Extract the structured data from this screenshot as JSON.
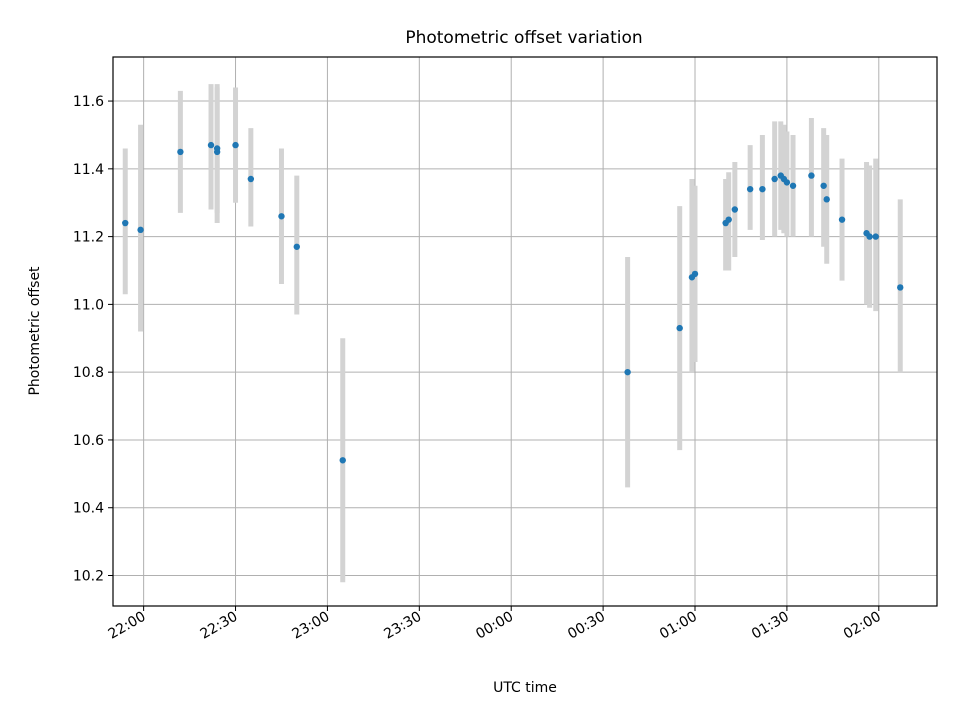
{
  "chart_data": {
    "type": "scatter",
    "title": "Photometric offset variation",
    "xlabel": "UTC time",
    "ylabel": "Photometric offset",
    "x_unit": "UTC time (wraps past midnight: 22:00 → 02:00)",
    "xlim": [
      "21:50",
      "02:19"
    ],
    "ylim": [
      10.11,
      11.73
    ],
    "grid": true,
    "x_ticks": [
      "22:00",
      "22:30",
      "23:00",
      "23:30",
      "00:00",
      "00:30",
      "01:00",
      "01:30",
      "02:00"
    ],
    "y_ticks": [
      "10.2",
      "10.4",
      "10.6",
      "10.8",
      "11.0",
      "11.2",
      "11.4",
      "11.6"
    ],
    "colors": {
      "marker": "#1f77b4",
      "errorbar": "#d3d3d3",
      "grid": "#b0b0b0"
    },
    "points": [
      {
        "x": "21:54",
        "y": 11.24,
        "lo": 11.03,
        "hi": 11.46
      },
      {
        "x": "21:59",
        "y": 11.22,
        "lo": 10.92,
        "hi": 11.53
      },
      {
        "x": "22:12",
        "y": 11.45,
        "lo": 11.27,
        "hi": 11.63
      },
      {
        "x": "22:22",
        "y": 11.47,
        "lo": 11.28,
        "hi": 11.65
      },
      {
        "x": "22:24",
        "y": 11.45,
        "lo": 11.24,
        "hi": 11.65
      },
      {
        "x": "22:24",
        "y": 11.46,
        "lo": 11.27,
        "hi": 11.64
      },
      {
        "x": "22:30",
        "y": 11.47,
        "lo": 11.3,
        "hi": 11.64
      },
      {
        "x": "22:35",
        "y": 11.37,
        "lo": 11.23,
        "hi": 11.52
      },
      {
        "x": "22:45",
        "y": 11.26,
        "lo": 11.06,
        "hi": 11.46
      },
      {
        "x": "22:50",
        "y": 11.17,
        "lo": 10.97,
        "hi": 11.38
      },
      {
        "x": "23:05",
        "y": 10.54,
        "lo": 10.18,
        "hi": 10.9
      },
      {
        "x": "00:38",
        "y": 10.8,
        "lo": 10.46,
        "hi": 11.14
      },
      {
        "x": "00:55",
        "y": 10.93,
        "lo": 10.57,
        "hi": 11.29
      },
      {
        "x": "00:59",
        "y": 11.08,
        "lo": 10.8,
        "hi": 11.37
      },
      {
        "x": "01:00",
        "y": 11.09,
        "lo": 10.83,
        "hi": 11.35
      },
      {
        "x": "01:10",
        "y": 11.24,
        "lo": 11.1,
        "hi": 11.37
      },
      {
        "x": "01:11",
        "y": 11.25,
        "lo": 11.1,
        "hi": 11.39
      },
      {
        "x": "01:13",
        "y": 11.28,
        "lo": 11.14,
        "hi": 11.42
      },
      {
        "x": "01:18",
        "y": 11.34,
        "lo": 11.22,
        "hi": 11.47
      },
      {
        "x": "01:22",
        "y": 11.34,
        "lo": 11.19,
        "hi": 11.5
      },
      {
        "x": "01:26",
        "y": 11.37,
        "lo": 11.2,
        "hi": 11.54
      },
      {
        "x": "01:28",
        "y": 11.38,
        "lo": 11.22,
        "hi": 11.54
      },
      {
        "x": "01:29",
        "y": 11.37,
        "lo": 11.21,
        "hi": 11.53
      },
      {
        "x": "01:30",
        "y": 11.36,
        "lo": 11.2,
        "hi": 11.51
      },
      {
        "x": "01:32",
        "y": 11.35,
        "lo": 11.2,
        "hi": 11.5
      },
      {
        "x": "01:38",
        "y": 11.38,
        "lo": 11.2,
        "hi": 11.55
      },
      {
        "x": "01:42",
        "y": 11.35,
        "lo": 11.17,
        "hi": 11.52
      },
      {
        "x": "01:43",
        "y": 11.31,
        "lo": 11.12,
        "hi": 11.5
      },
      {
        "x": "01:48",
        "y": 11.25,
        "lo": 11.07,
        "hi": 11.43
      },
      {
        "x": "01:56",
        "y": 11.21,
        "lo": 11.0,
        "hi": 11.42
      },
      {
        "x": "01:57",
        "y": 11.2,
        "lo": 10.99,
        "hi": 11.41
      },
      {
        "x": "01:59",
        "y": 11.2,
        "lo": 10.98,
        "hi": 11.43
      },
      {
        "x": "02:07",
        "y": 11.05,
        "lo": 10.8,
        "hi": 11.31
      }
    ]
  }
}
